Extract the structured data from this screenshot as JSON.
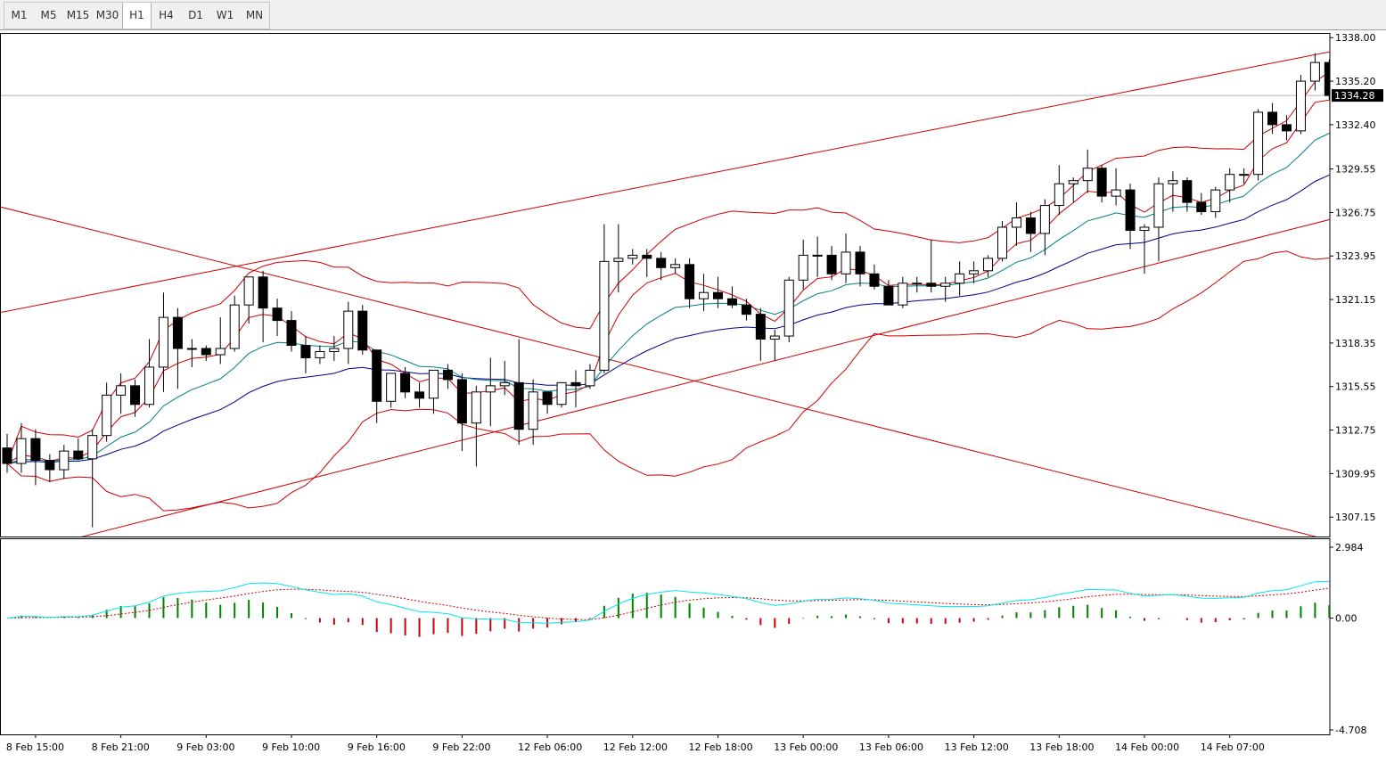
{
  "toolbar": {
    "timeframes": [
      "M1",
      "M5",
      "M15",
      "M30",
      "H1",
      "H4",
      "D1",
      "W1",
      "MN"
    ],
    "active": "H1"
  },
  "colors": {
    "bull_body": "#ffffff",
    "bear_body": "#000000",
    "candle_outline": "#000000",
    "bollinger": "#cc0000",
    "fast_ma": "#cc0000",
    "mid_ma": "#008080",
    "slow_ma": "#00008b",
    "trendline": "#cc0000",
    "macd_pos": "#008000",
    "macd_neg": "#cc0000",
    "macd_signal_line": "#00e5ee",
    "macd_signal_dotted": "#cc0000",
    "price_line": "#b0b0b0"
  },
  "chart_data": [
    {
      "type": "candlestick",
      "symbol_timeframe": "H1",
      "yticks": [
        "1338.00",
        "1335.20",
        "1332.40",
        "1329.55",
        "1326.75",
        "1323.95",
        "1321.15",
        "1318.35",
        "1315.55",
        "1312.75",
        "1309.95",
        "1307.15"
      ],
      "ylim": [
        1305.9,
        1338.3
      ],
      "current_price": "1334.28",
      "xticks": [
        "8 Feb 15:00",
        "8 Feb 21:00",
        "9 Feb 03:00",
        "9 Feb 10:00",
        "9 Feb 16:00",
        "9 Feb 22:00",
        "12 Feb 06:00",
        "12 Feb 12:00",
        "12 Feb 18:00",
        "13 Feb 00:00",
        "13 Feb 06:00",
        "13 Feb 12:00",
        "13 Feb 18:00",
        "14 Feb 00:00",
        "14 Feb 07:00"
      ],
      "candles": [
        [
          1311.6,
          1312.5,
          1310.0,
          1310.6
        ],
        [
          1310.6,
          1313.2,
          1310.0,
          1312.2
        ],
        [
          1312.2,
          1312.8,
          1309.2,
          1310.8
        ],
        [
          1310.8,
          1311.2,
          1309.4,
          1310.2
        ],
        [
          1310.2,
          1311.8,
          1309.6,
          1311.4
        ],
        [
          1311.4,
          1312.2,
          1310.8,
          1310.9
        ],
        [
          1310.9,
          1312.8,
          1306.5,
          1312.4
        ],
        [
          1312.4,
          1315.8,
          1312.0,
          1315.0
        ],
        [
          1315.0,
          1316.4,
          1313.8,
          1315.6
        ],
        [
          1315.6,
          1316.0,
          1313.6,
          1314.4
        ],
        [
          1314.4,
          1318.6,
          1314.2,
          1316.8
        ],
        [
          1316.8,
          1321.6,
          1315.2,
          1320.0
        ],
        [
          1320.0,
          1320.6,
          1315.4,
          1318.0
        ],
        [
          1318.0,
          1318.6,
          1316.8,
          1318.0
        ],
        [
          1318.0,
          1318.2,
          1317.2,
          1317.6
        ],
        [
          1317.6,
          1320.0,
          1317.0,
          1318.0
        ],
        [
          1318.0,
          1321.4,
          1317.8,
          1320.8
        ],
        [
          1320.8,
          1322.4,
          1319.6,
          1322.6
        ],
        [
          1322.6,
          1323.0,
          1318.4,
          1320.6
        ],
        [
          1320.6,
          1321.2,
          1318.8,
          1319.8
        ],
        [
          1319.8,
          1320.4,
          1317.8,
          1318.2
        ],
        [
          1318.2,
          1318.8,
          1316.4,
          1317.4
        ],
        [
          1317.4,
          1318.2,
          1317.0,
          1317.8
        ],
        [
          1317.8,
          1318.8,
          1317.2,
          1318.0
        ],
        [
          1318.0,
          1321.0,
          1317.0,
          1320.4
        ],
        [
          1320.4,
          1320.8,
          1317.6,
          1317.9
        ],
        [
          1317.9,
          1317.6,
          1313.2,
          1314.6
        ],
        [
          1314.6,
          1316.4,
          1314.2,
          1316.4
        ],
        [
          1316.4,
          1316.8,
          1314.8,
          1315.2
        ],
        [
          1315.2,
          1315.8,
          1314.2,
          1314.8
        ],
        [
          1314.8,
          1316.6,
          1313.8,
          1316.6
        ],
        [
          1316.6,
          1317.0,
          1315.4,
          1316.0
        ],
        [
          1316.0,
          1316.4,
          1311.4,
          1313.2
        ],
        [
          1313.2,
          1315.6,
          1310.4,
          1315.2
        ],
        [
          1315.2,
          1317.4,
          1313.0,
          1315.6
        ],
        [
          1315.6,
          1317.2,
          1315.0,
          1315.8
        ],
        [
          1315.8,
          1318.6,
          1311.8,
          1312.8
        ],
        [
          1312.8,
          1316.0,
          1311.8,
          1315.2
        ],
        [
          1315.2,
          1315.2,
          1313.8,
          1314.4
        ],
        [
          1314.4,
          1315.8,
          1314.2,
          1315.8
        ],
        [
          1315.8,
          1316.6,
          1314.2,
          1315.6
        ],
        [
          1315.6,
          1317.0,
          1315.4,
          1316.6
        ],
        [
          1316.6,
          1326.0,
          1316.4,
          1323.6
        ],
        [
          1323.6,
          1326.0,
          1321.6,
          1323.8
        ],
        [
          1323.8,
          1324.4,
          1323.4,
          1324.0
        ],
        [
          1324.0,
          1324.4,
          1322.6,
          1323.8
        ],
        [
          1323.8,
          1324.2,
          1322.4,
          1323.2
        ],
        [
          1323.2,
          1323.8,
          1322.8,
          1323.4
        ],
        [
          1323.4,
          1323.8,
          1320.6,
          1321.2
        ],
        [
          1321.2,
          1322.8,
          1320.4,
          1321.6
        ],
        [
          1321.6,
          1322.6,
          1320.6,
          1321.2
        ],
        [
          1321.2,
          1322.0,
          1320.6,
          1320.8
        ],
        [
          1320.8,
          1321.2,
          1319.8,
          1320.2
        ],
        [
          1320.2,
          1320.6,
          1317.2,
          1318.6
        ],
        [
          1318.6,
          1319.2,
          1317.2,
          1318.8
        ],
        [
          1318.8,
          1322.6,
          1318.4,
          1322.4
        ],
        [
          1322.4,
          1325.0,
          1321.8,
          1324.0
        ],
        [
          1324.0,
          1325.2,
          1322.6,
          1324.0
        ],
        [
          1324.0,
          1324.6,
          1322.4,
          1322.8
        ],
        [
          1322.8,
          1325.4,
          1322.2,
          1324.2
        ],
        [
          1324.2,
          1324.6,
          1322.0,
          1322.8
        ],
        [
          1322.8,
          1323.4,
          1321.8,
          1322.0
        ],
        [
          1322.0,
          1322.4,
          1320.8,
          1320.8
        ],
        [
          1320.8,
          1322.6,
          1320.6,
          1322.2
        ],
        [
          1322.2,
          1322.6,
          1321.6,
          1322.2
        ],
        [
          1322.2,
          1325.0,
          1321.6,
          1322.0
        ],
        [
          1322.0,
          1322.6,
          1321.0,
          1322.2
        ],
        [
          1322.2,
          1323.6,
          1321.4,
          1322.8
        ],
        [
          1322.8,
          1323.6,
          1322.2,
          1323.0
        ],
        [
          1323.0,
          1324.0,
          1322.6,
          1323.8
        ],
        [
          1323.8,
          1326.2,
          1323.6,
          1325.8
        ],
        [
          1325.8,
          1327.4,
          1324.6,
          1326.4
        ],
        [
          1326.4,
          1326.8,
          1324.2,
          1325.4
        ],
        [
          1325.4,
          1327.6,
          1324.0,
          1327.2
        ],
        [
          1327.2,
          1329.8,
          1326.6,
          1328.6
        ],
        [
          1328.6,
          1329.0,
          1327.4,
          1328.8
        ],
        [
          1328.8,
          1330.8,
          1328.0,
          1329.6
        ],
        [
          1329.6,
          1329.8,
          1327.4,
          1327.8
        ],
        [
          1327.8,
          1329.6,
          1327.2,
          1328.2
        ],
        [
          1328.2,
          1328.6,
          1324.4,
          1325.6
        ],
        [
          1325.6,
          1326.0,
          1322.8,
          1325.8
        ],
        [
          1325.8,
          1329.0,
          1323.6,
          1328.6
        ],
        [
          1328.6,
          1329.4,
          1326.8,
          1328.8
        ],
        [
          1328.8,
          1329.0,
          1326.8,
          1327.4
        ],
        [
          1327.4,
          1328.0,
          1326.6,
          1326.8
        ],
        [
          1326.8,
          1328.4,
          1326.4,
          1328.2
        ],
        [
          1328.2,
          1329.6,
          1327.4,
          1329.2
        ],
        [
          1329.2,
          1329.6,
          1328.6,
          1329.2
        ],
        [
          1329.2,
          1333.4,
          1328.8,
          1333.2
        ],
        [
          1333.2,
          1333.8,
          1331.8,
          1332.4
        ],
        [
          1332.4,
          1333.0,
          1331.4,
          1332.0
        ],
        [
          1332.0,
          1335.6,
          1331.8,
          1335.2
        ],
        [
          1335.2,
          1337.0,
          1334.6,
          1336.4
        ],
        [
          1336.4,
          1336.6,
          1334.0,
          1334.28
        ]
      ]
    },
    {
      "type": "bar",
      "name": "",
      "yticks": [
        "2.984",
        "0.00",
        "-4.708"
      ],
      "ylim": [
        -4.708,
        2.984
      ]
    }
  ]
}
